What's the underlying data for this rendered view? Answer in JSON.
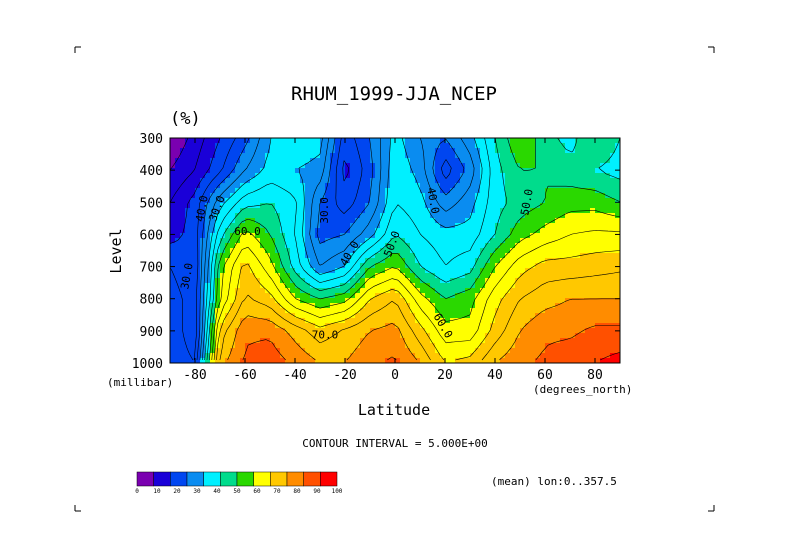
{
  "chart_data": {
    "type": "contour",
    "title": "RHUM_1999-JJA_NCEP",
    "units_label": "(%)",
    "xlabel": "Latitude",
    "ylabel": "Level",
    "x_unit_label": "(degrees_north)",
    "y_unit_label": "(millibar)",
    "xlim": [
      -90,
      90
    ],
    "ylim": [
      1000,
      300
    ],
    "x_ticks": [
      -80,
      -60,
      -40,
      -20,
      0,
      20,
      40,
      60,
      80
    ],
    "x_tick_labels": [
      "-80",
      "-60",
      "-40",
      "-20",
      "0",
      "20",
      "40",
      "60",
      "80"
    ],
    "y_ticks": [
      300,
      400,
      500,
      600,
      700,
      800,
      900,
      1000
    ],
    "y_tick_labels": [
      "300",
      "400",
      "500",
      "600",
      "700",
      "800",
      "900",
      "1000"
    ],
    "contour_interval_text": "CONTOUR INTERVAL = 5.000E+00",
    "annotation": "(mean) lon:0..357.5",
    "colorbar": {
      "labels": [
        "0",
        "10",
        "20",
        "30",
        "40",
        "50",
        "60",
        "70",
        "80",
        "90",
        "100"
      ],
      "colors": [
        "#7a00b0",
        "#1a00d8",
        "#0046f0",
        "#0a8cf0",
        "#00f0ff",
        "#00dc8c",
        "#2ad800",
        "#ffff00",
        "#ffc800",
        "#ff8c00",
        "#ff5000",
        "#ff0000"
      ]
    },
    "contour_labels": [
      {
        "text": "40.0",
        "x": -77,
        "y": 520,
        "rotate": -80
      },
      {
        "text": "30.0",
        "x": -71,
        "y": 520,
        "rotate": -70
      },
      {
        "text": "60.0",
        "x": -59,
        "y": 592,
        "rotate": 0
      },
      {
        "text": "30.0",
        "x": -83,
        "y": 730,
        "rotate": -80
      },
      {
        "text": "30.0",
        "x": -28,
        "y": 525,
        "rotate": -90
      },
      {
        "text": "40.0",
        "x": -18,
        "y": 660,
        "rotate": -60
      },
      {
        "text": "50.0",
        "x": -1,
        "y": 630,
        "rotate": -70
      },
      {
        "text": "70.0",
        "x": -28,
        "y": 915,
        "rotate": 0
      },
      {
        "text": "40.0",
        "x": 15,
        "y": 495,
        "rotate": 80
      },
      {
        "text": "60.0",
        "x": 19,
        "y": 885,
        "rotate": 60
      },
      {
        "text": "50.0",
        "x": 53,
        "y": 500,
        "rotate": -80
      }
    ],
    "field_note": "relative humidity (%), zonal mean, by latitude and pressure level",
    "grid_latitudes": [
      -90,
      -80,
      -70,
      -60,
      -50,
      -40,
      -30,
      -20,
      -10,
      0,
      10,
      20,
      30,
      40,
      50,
      60,
      70,
      80,
      90
    ],
    "grid_levels": [
      300,
      400,
      500,
      600,
      700,
      800,
      900,
      1000
    ],
    "values": [
      [
        5,
        12,
        20,
        28,
        40,
        45,
        42,
        22,
        30,
        42,
        35,
        30,
        38,
        50,
        60,
        52,
        48,
        55,
        50
      ],
      [
        10,
        15,
        24,
        35,
        42,
        40,
        38,
        18,
        28,
        44,
        38,
        22,
        32,
        48,
        55,
        55,
        52,
        50,
        48
      ],
      [
        15,
        22,
        38,
        48,
        50,
        46,
        30,
        22,
        30,
        45,
        42,
        32,
        38,
        48,
        52,
        55,
        58,
        58,
        55
      ],
      [
        18,
        22,
        48,
        62,
        55,
        45,
        28,
        30,
        38,
        50,
        45,
        42,
        42,
        50,
        58,
        62,
        65,
        66,
        66
      ],
      [
        25,
        20,
        58,
        72,
        62,
        48,
        35,
        40,
        55,
        60,
        50,
        45,
        48,
        60,
        68,
        72,
        72,
        73,
        74
      ],
      [
        28,
        22,
        60,
        76,
        72,
        60,
        55,
        58,
        70,
        75,
        62,
        55,
        58,
        68,
        75,
        78,
        80,
        80,
        80
      ],
      [
        30,
        20,
        72,
        84,
        84,
        78,
        72,
        76,
        80,
        82,
        72,
        62,
        62,
        72,
        80,
        84,
        84,
        86,
        86
      ],
      [
        30,
        25,
        78,
        86,
        88,
        84,
        80,
        80,
        84,
        86,
        80,
        70,
        72,
        80,
        84,
        86,
        88,
        90,
        92
      ]
    ]
  }
}
